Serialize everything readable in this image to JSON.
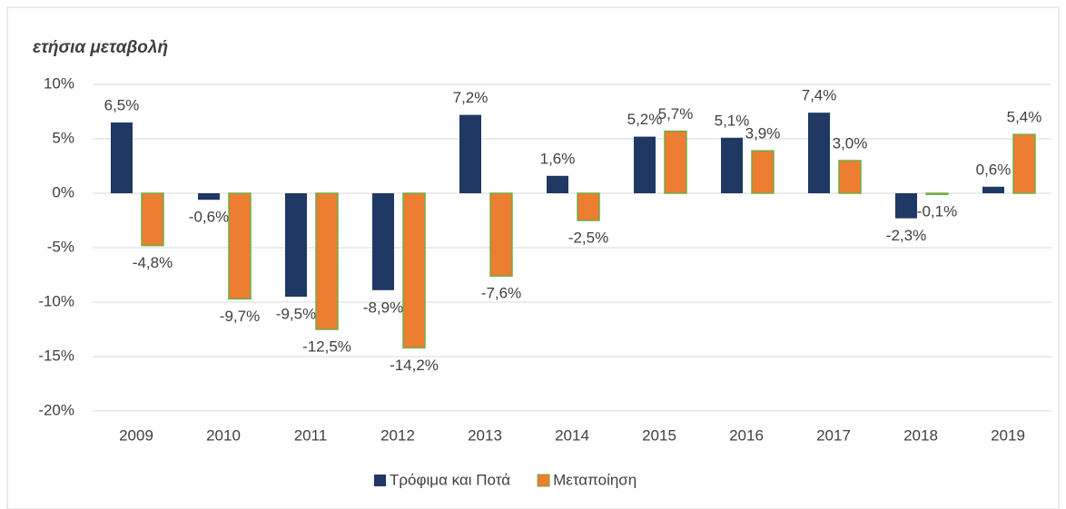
{
  "chart_data": {
    "type": "bar",
    "title": "ετήσια μεταβολή",
    "categories": [
      "2009",
      "2010",
      "2011",
      "2012",
      "2013",
      "2014",
      "2015",
      "2016",
      "2017",
      "2018",
      "2019"
    ],
    "series": [
      {
        "name": "Τρόφιμα και Ποτά",
        "color": "#1f3864",
        "values": [
          6.5,
          -0.6,
          -9.5,
          -8.9,
          7.2,
          1.6,
          5.2,
          5.1,
          7.4,
          -2.3,
          0.6
        ],
        "value_labels": [
          "6,5%",
          "-0,6%",
          "-9,5%",
          "-8,9%",
          "7,2%",
          "1,6%",
          "5,2%",
          "5,1%",
          "7,4%",
          "-2,3%",
          "0,6%"
        ]
      },
      {
        "name": "Μεταποίηση",
        "color": "#ed7d31",
        "values": [
          -4.8,
          -9.7,
          -12.5,
          -14.2,
          -7.6,
          -2.5,
          5.7,
          3.9,
          3.0,
          -0.1,
          5.4
        ],
        "value_labels": [
          "-4,8%",
          "-9,7%",
          "-12,5%",
          "-14,2%",
          "-7,6%",
          "-2,5%",
          "5,7%",
          "3,9%",
          "3,0%",
          "-0,1%",
          "5,4%"
        ]
      }
    ],
    "ylim": [
      -20,
      10
    ],
    "yticks": [
      {
        "value": -20,
        "label": "-20%"
      },
      {
        "value": -15,
        "label": "-15%"
      },
      {
        "value": -10,
        "label": "-10%"
      },
      {
        "value": -5,
        "label": "-5%"
      },
      {
        "value": 0,
        "label": "0%"
      },
      {
        "value": 5,
        "label": "5%"
      },
      {
        "value": 10,
        "label": "10%"
      }
    ],
    "grid": true,
    "legend": "bottom"
  }
}
